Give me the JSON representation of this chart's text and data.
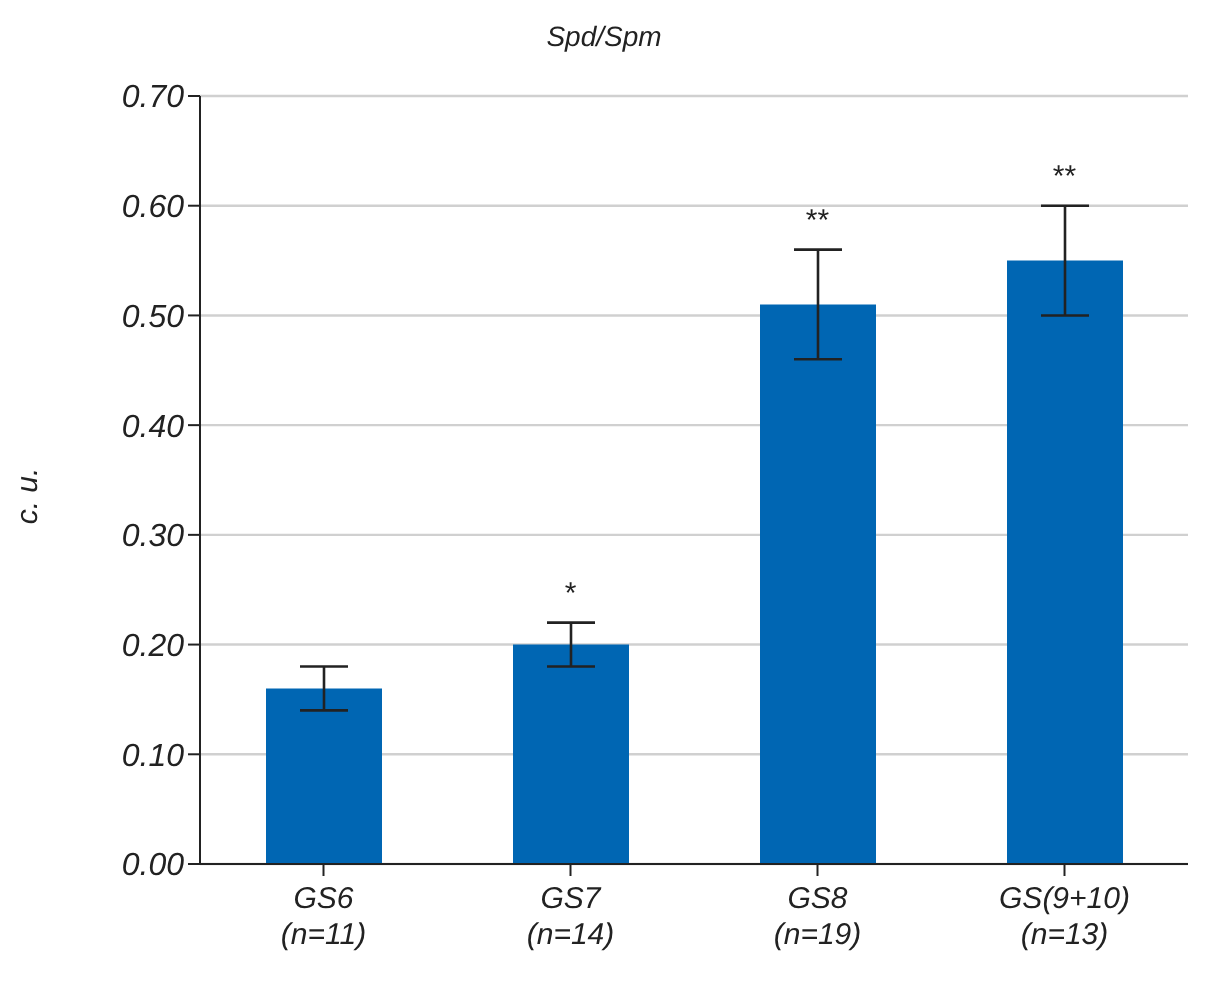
{
  "chart_data": {
    "type": "bar",
    "title": "Spd/Spm",
    "ylabel": "c. u.",
    "categories": [
      "GS6\n(n=11)",
      "GS7\n(n=14)",
      "GS8\n(n=19)",
      "GS(9+10)\n(n=13)"
    ],
    "values": [
      0.16,
      0.2,
      0.51,
      0.55
    ],
    "errors": [
      0.02,
      0.02,
      0.05,
      0.05
    ],
    "color": "#0066b3",
    "ylim": [
      0,
      0.7
    ],
    "yticks": [
      {
        "value": 0,
        "label": "0.00"
      },
      {
        "value": 0.1,
        "label": "0.10"
      },
      {
        "value": 0.2,
        "label": "0.20"
      },
      {
        "value": 0.3,
        "label": "0.30"
      },
      {
        "value": 0.4,
        "label": "0.40"
      },
      {
        "value": 0.5,
        "label": "0.50"
      },
      {
        "value": 0.6,
        "label": "0.60"
      },
      {
        "value": 0.7,
        "label": "0.70"
      }
    ],
    "grid": "y",
    "annotations": [
      {
        "text": "*",
        "x": "GS7\n(n=14)",
        "y": 0.22
      },
      {
        "text": "**",
        "x": "GS8\n(n=19)",
        "y": 0.56
      },
      {
        "text": "**",
        "x": "GS(9+10)\n(n=13)",
        "y": 0.6
      }
    ]
  }
}
